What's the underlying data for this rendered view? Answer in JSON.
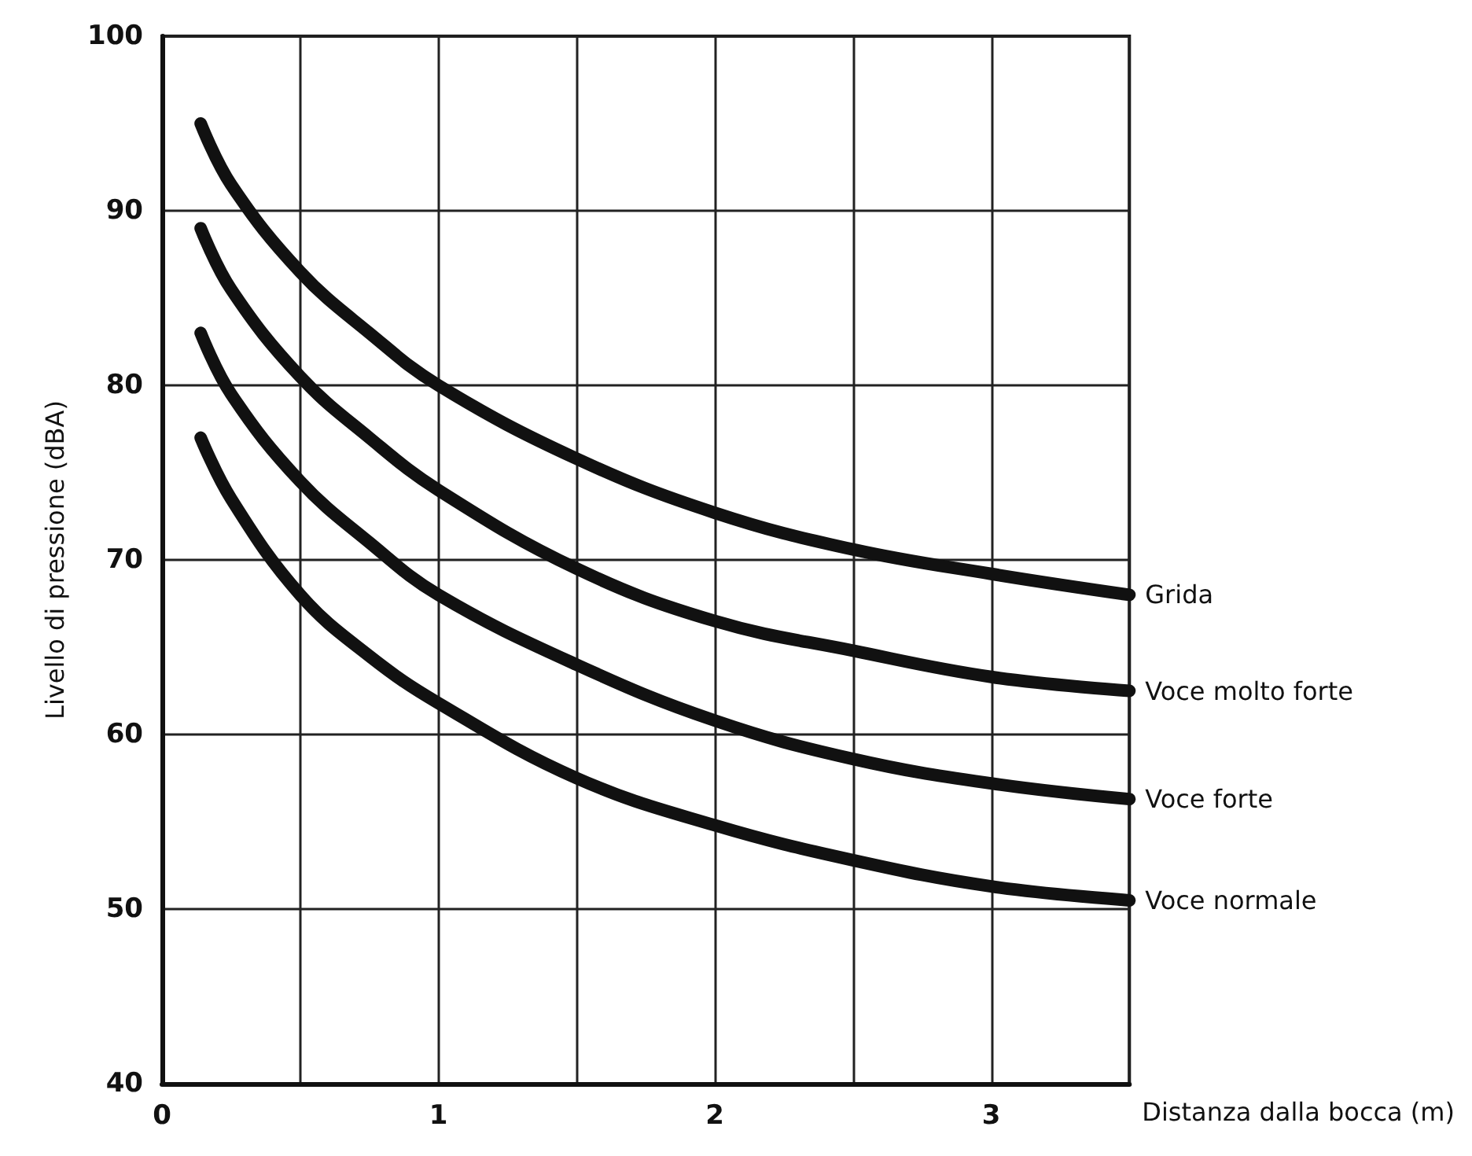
{
  "chart_data": {
    "type": "line",
    "xlabel": "Distanza dalla bocca (m)",
    "ylabel": "Livello di pressione (dBA)",
    "xlim": [
      0,
      3.5
    ],
    "xticks": [
      0,
      {
        "value": 0.5,
        "label": null
      },
      1,
      {
        "value": 1.5,
        "label": null
      },
      2,
      {
        "value": 2.5,
        "label": null
      },
      3,
      {
        "value": 3.5,
        "label": null
      }
    ],
    "ylim": [
      40,
      100
    ],
    "yticks": [
      40,
      50,
      60,
      70,
      80,
      90,
      100
    ],
    "grid": true,
    "legend": false,
    "line_style": "solid",
    "series": [
      {
        "name": "Grida",
        "color": "#111111",
        "x": [
          0.14,
          0.25,
          0.5,
          0.75,
          1,
          1.5,
          2,
          2.5,
          3,
          3.5
        ],
        "values": [
          95,
          91.5,
          86.5,
          83,
          80,
          75.8,
          72.7,
          70.6,
          69.2,
          68
        ]
      },
      {
        "name": "Voce molto forte",
        "color": "#111111",
        "x": [
          0.14,
          0.25,
          0.5,
          0.75,
          1,
          1.5,
          2,
          2.5,
          3,
          3.5
        ],
        "values": [
          89,
          85.5,
          80.5,
          77,
          74,
          69.5,
          66.5,
          64.8,
          63.3,
          62.5
        ]
      },
      {
        "name": "Voce forte",
        "color": "#111111",
        "x": [
          0.14,
          0.25,
          0.5,
          0.75,
          1,
          1.5,
          2,
          2.5,
          3,
          3.5
        ],
        "values": [
          83,
          79.5,
          74.5,
          71,
          68,
          64,
          60.8,
          58.6,
          57.2,
          56.3
        ]
      },
      {
        "name": "Voce normale",
        "color": "#111111",
        "x": [
          0.14,
          0.25,
          0.5,
          0.75,
          1,
          1.5,
          2,
          2.5,
          3,
          3.5
        ],
        "values": [
          77,
          73.5,
          68,
          64.5,
          61.8,
          57.5,
          54.8,
          52.8,
          51.3,
          50.5
        ]
      }
    ]
  }
}
